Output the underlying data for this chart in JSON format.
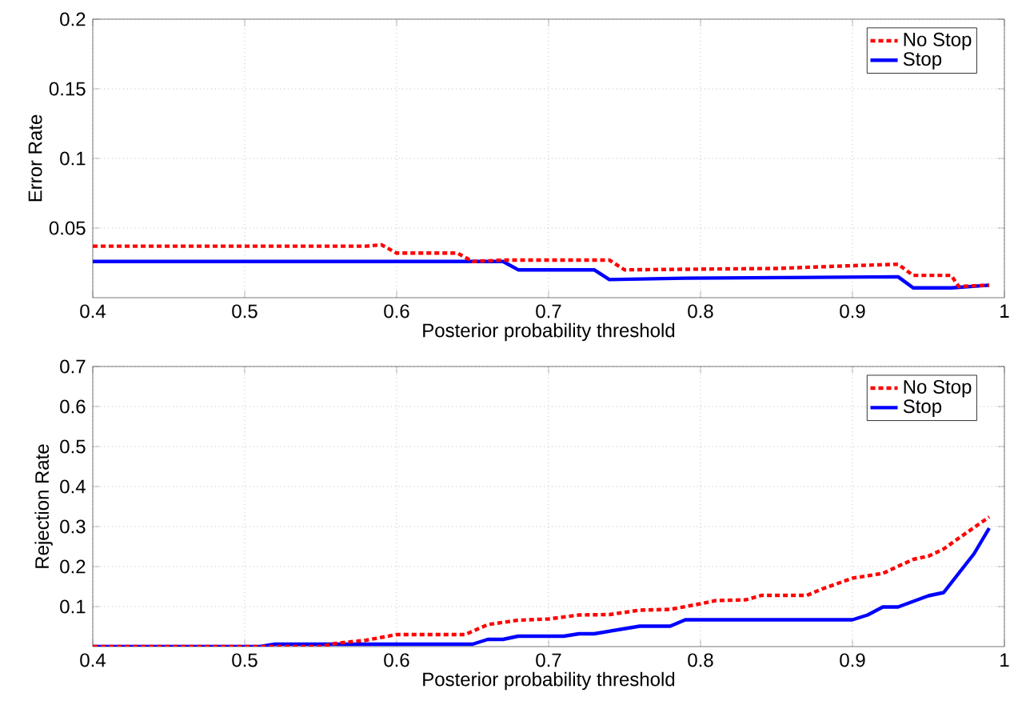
{
  "chart_data": [
    {
      "type": "line",
      "xlabel": "Posterior probability threshold",
      "ylabel": "Error Rate",
      "xlim": [
        0.4,
        1
      ],
      "xticks": [
        0.4,
        0.5,
        0.6,
        0.7,
        0.8,
        0.9,
        1
      ],
      "ylim": [
        0,
        0.2
      ],
      "yticks": [
        0.05,
        0.1,
        0.15,
        0.2
      ],
      "grid": true,
      "legend": "top right",
      "series": [
        {
          "name": "No Stop",
          "color": "#ff0000",
          "line_style": "dashed",
          "x": [
            0.4,
            0.58,
            0.59,
            0.6,
            0.64,
            0.65,
            0.67,
            0.74,
            0.75,
            0.85,
            0.9,
            0.93,
            0.94,
            0.965,
            0.97,
            0.99
          ],
          "values": [
            0.037,
            0.037,
            0.038,
            0.032,
            0.032,
            0.026,
            0.027,
            0.027,
            0.02,
            0.021,
            0.023,
            0.024,
            0.016,
            0.016,
            0.008,
            0.009
          ]
        },
        {
          "name": "Stop",
          "color": "#0000ff",
          "line_style": "solid",
          "x": [
            0.4,
            0.67,
            0.68,
            0.73,
            0.74,
            0.79,
            0.93,
            0.94,
            0.965,
            0.99
          ],
          "values": [
            0.026,
            0.026,
            0.02,
            0.02,
            0.013,
            0.014,
            0.015,
            0.007,
            0.007,
            0.009
          ]
        }
      ]
    },
    {
      "type": "line",
      "xlabel": "Posterior probability threshold",
      "ylabel": "Rejection Rate",
      "xlim": [
        0.4,
        1
      ],
      "xticks": [
        0.4,
        0.5,
        0.6,
        0.7,
        0.8,
        0.9,
        1
      ],
      "ylim": [
        0,
        0.7
      ],
      "yticks": [
        0.1,
        0.2,
        0.3,
        0.4,
        0.5,
        0.6,
        0.7
      ],
      "grid": true,
      "legend": "top right",
      "series": [
        {
          "name": "No Stop",
          "color": "#ff0000",
          "line_style": "dashed",
          "x": [
            0.4,
            0.55,
            0.56,
            0.58,
            0.6,
            0.645,
            0.66,
            0.68,
            0.7,
            0.72,
            0.74,
            0.76,
            0.78,
            0.8,
            0.81,
            0.83,
            0.84,
            0.87,
            0.88,
            0.9,
            0.92,
            0.94,
            0.95,
            0.96,
            0.97,
            0.99
          ],
          "values": [
            0,
            0,
            0.008,
            0.016,
            0.03,
            0.03,
            0.055,
            0.066,
            0.069,
            0.079,
            0.08,
            0.091,
            0.093,
            0.107,
            0.115,
            0.117,
            0.128,
            0.128,
            0.144,
            0.171,
            0.183,
            0.218,
            0.226,
            0.244,
            0.271,
            0.324
          ]
        },
        {
          "name": "Stop",
          "color": "#0000ff",
          "line_style": "solid",
          "x": [
            0.4,
            0.51,
            0.52,
            0.65,
            0.66,
            0.67,
            0.68,
            0.71,
            0.72,
            0.73,
            0.76,
            0.78,
            0.79,
            0.9,
            0.91,
            0.92,
            0.93,
            0.95,
            0.96,
            0.98,
            0.99
          ],
          "values": [
            0,
            0,
            0.006,
            0.006,
            0.018,
            0.018,
            0.026,
            0.026,
            0.032,
            0.032,
            0.051,
            0.051,
            0.067,
            0.067,
            0.079,
            0.099,
            0.099,
            0.127,
            0.135,
            0.232,
            0.296
          ]
        }
      ]
    }
  ]
}
